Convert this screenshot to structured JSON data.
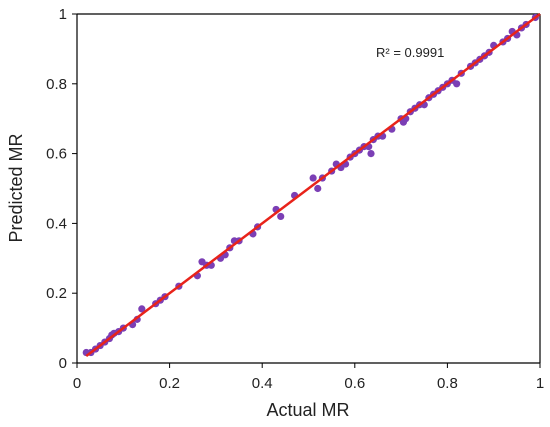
{
  "chart_data": {
    "type": "scatter",
    "title": "",
    "xlabel": "Actual MR",
    "ylabel": "Predicted MR",
    "xlim": [
      0,
      1
    ],
    "ylim": [
      0,
      1
    ],
    "x_ticks": [
      "0",
      "0.2",
      "0.4",
      "0.6",
      "0.8",
      "1"
    ],
    "y_ticks": [
      "0",
      "0.2",
      "0.4",
      "0.6",
      "0.8",
      "1"
    ],
    "grid": false,
    "legend": "none",
    "annotation": "R² = 0.9991",
    "colors": {
      "points": "#7b3fb5",
      "fit_line": "#e8231a",
      "axes": "#000000"
    },
    "series": [
      {
        "type": "scatter",
        "x": [
          0.02,
          0.03,
          0.04,
          0.05,
          0.06,
          0.07,
          0.075,
          0.08,
          0.09,
          0.1,
          0.12,
          0.13,
          0.14,
          0.17,
          0.18,
          0.19,
          0.22,
          0.26,
          0.27,
          0.28,
          0.29,
          0.31,
          0.32,
          0.33,
          0.34,
          0.35,
          0.38,
          0.39,
          0.43,
          0.44,
          0.47,
          0.51,
          0.52,
          0.53,
          0.55,
          0.56,
          0.57,
          0.58,
          0.59,
          0.6,
          0.61,
          0.62,
          0.63,
          0.635,
          0.64,
          0.65,
          0.66,
          0.68,
          0.7,
          0.705,
          0.71,
          0.72,
          0.73,
          0.74,
          0.75,
          0.76,
          0.77,
          0.78,
          0.79,
          0.8,
          0.81,
          0.82,
          0.83,
          0.85,
          0.86,
          0.87,
          0.88,
          0.89,
          0.9,
          0.92,
          0.93,
          0.94,
          0.95,
          0.96,
          0.97,
          0.99
        ],
        "y": [
          0.03,
          0.03,
          0.04,
          0.05,
          0.06,
          0.07,
          0.08,
          0.085,
          0.09,
          0.1,
          0.11,
          0.125,
          0.155,
          0.17,
          0.18,
          0.19,
          0.22,
          0.25,
          0.29,
          0.28,
          0.28,
          0.3,
          0.31,
          0.33,
          0.35,
          0.35,
          0.37,
          0.39,
          0.44,
          0.42,
          0.48,
          0.53,
          0.5,
          0.53,
          0.55,
          0.57,
          0.56,
          0.57,
          0.59,
          0.6,
          0.61,
          0.62,
          0.62,
          0.6,
          0.64,
          0.65,
          0.65,
          0.67,
          0.7,
          0.69,
          0.7,
          0.72,
          0.73,
          0.74,
          0.74,
          0.76,
          0.77,
          0.78,
          0.79,
          0.8,
          0.81,
          0.8,
          0.83,
          0.85,
          0.86,
          0.87,
          0.88,
          0.89,
          0.91,
          0.92,
          0.93,
          0.95,
          0.94,
          0.96,
          0.97,
          0.99
        ]
      },
      {
        "type": "line",
        "x": [
          0.02,
          1
        ],
        "y": [
          0.02,
          1
        ]
      }
    ]
  }
}
